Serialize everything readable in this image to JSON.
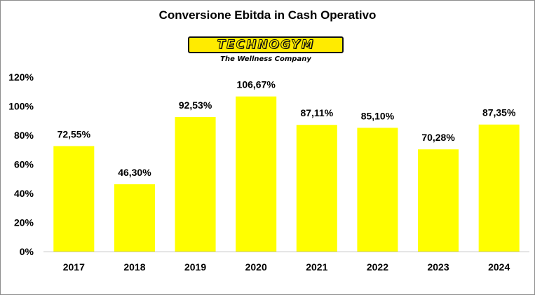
{
  "logo": {
    "wordmark": "TECHNOGYM",
    "tagline": "The Wellness Company"
  },
  "colors": {
    "bar": "#ffff00",
    "axis": "#c0c0c0",
    "text": "#000000"
  },
  "chart_data": {
    "type": "bar",
    "title": "Conversione Ebitda in Cash Operativo",
    "categories": [
      "2017",
      "2018",
      "2019",
      "2020",
      "2021",
      "2022",
      "2023",
      "2024"
    ],
    "values": [
      72.55,
      46.3,
      92.53,
      106.67,
      87.11,
      85.1,
      70.28,
      87.35
    ],
    "data_labels": [
      "72,55%",
      "46,30%",
      "92,53%",
      "106,67%",
      "87,11%",
      "85,10%",
      "70,28%",
      "87,35%"
    ],
    "y_ticks": [
      0,
      20,
      40,
      60,
      80,
      100,
      120
    ],
    "y_tick_labels": [
      "0%",
      "20%",
      "40%",
      "60%",
      "80%",
      "100%",
      "120%"
    ],
    "ylim": [
      0,
      120
    ],
    "grid": false,
    "legend": "none"
  }
}
